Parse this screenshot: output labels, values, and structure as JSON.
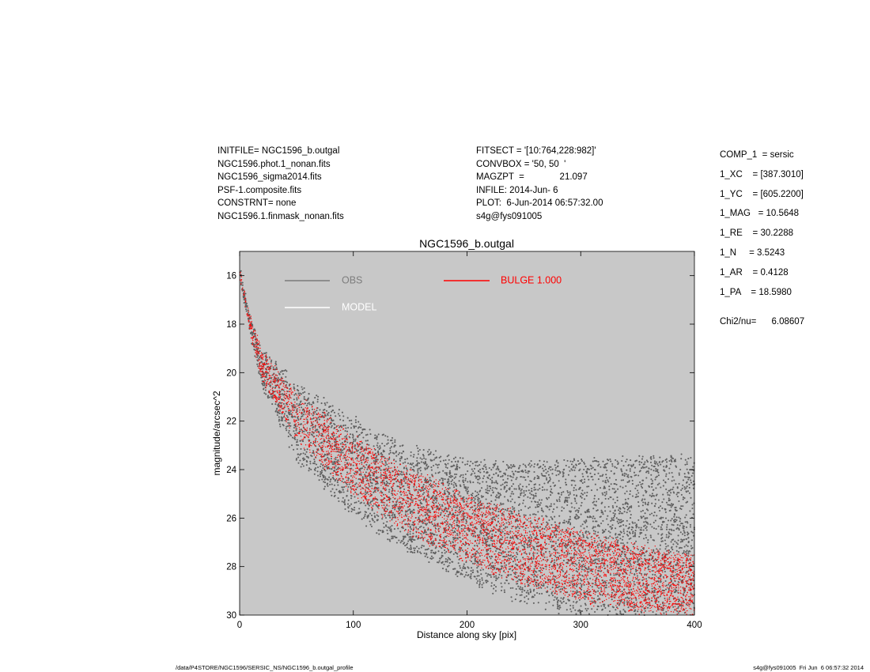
{
  "header_left": [
    "INITFILE= NGC1596_b.outgal",
    "NGC1596.phot.1_nonan.fits",
    "NGC1596_sigma2014.fits",
    "PSF-1.composite.fits",
    "CONSTRNT= none",
    "NGC1596.1.finmask_nonan.fits"
  ],
  "header_mid": [
    "FITSECT = '[10:764,228:982]'",
    "CONVBOX = '50, 50  '",
    "MAGZPT  =              21.097",
    "INFILE: 2014-Jun- 6",
    "PLOT:  6-Jun-2014 06:57:32.00",
    "s4g@fys091005"
  ],
  "params": [
    "COMP_1  = sersic",
    "1_XC    = [387.3010]",
    "1_YC    = [605.2200]",
    "1_MAG   = 10.5648",
    "1_RE    = 30.2288",
    "1_N     = 3.5243",
    "1_AR    = 0.4128",
    "1_PA    = 18.5980"
  ],
  "chi2": "Chi2/nu=      6.08607",
  "footer_left": "/data/P4STORE/NGC1596/SERSIC_NS/NGC1596_b.outgal_profile",
  "footer_right": "s4g@fys091005  Fri Jun  6 06:57:32 2014",
  "chart_data": {
    "type": "scatter",
    "title": "NGC1596_b.outgal",
    "xlabel": "Distance along sky [pix]",
    "ylabel": "magnitude/arcsec^2",
    "xlim": [
      0,
      400
    ],
    "ylim": [
      30,
      15
    ],
    "y_inverted": true,
    "x_ticks": [
      0,
      100,
      200,
      300,
      400
    ],
    "y_ticks": [
      16,
      18,
      20,
      22,
      24,
      26,
      28,
      30
    ],
    "grid": false,
    "background": "#c8c8c8",
    "legend": [
      {
        "name": "OBS",
        "color": "#6e6e6e"
      },
      {
        "name": "MODEL",
        "color": "#ffffff"
      },
      {
        "name": "BULGE  1.000",
        "color": "#ff0000"
      }
    ],
    "series": [
      {
        "name": "OBS",
        "color": "#606060",
        "upper_envelope": {
          "x": [
            0,
            10,
            20,
            50,
            100,
            150,
            200,
            250,
            300,
            350,
            400
          ],
          "y": [
            15.7,
            17.9,
            19.1,
            20.4,
            21.9,
            23.1,
            23.6,
            23.8,
            23.6,
            23.5,
            23.4
          ]
        },
        "lower_envelope": {
          "x": [
            0,
            10,
            20,
            50,
            100,
            150,
            200,
            250,
            300,
            350,
            400
          ],
          "y": [
            16.0,
            18.6,
            20.6,
            23.6,
            25.9,
            27.4,
            28.6,
            29.5,
            30.0,
            30.0,
            30.0
          ]
        }
      },
      {
        "name": "BULGE  1.000",
        "color": "#ff0000",
        "upper_envelope": {
          "x": [
            0,
            10,
            20,
            50,
            100,
            150,
            200,
            250,
            300,
            350,
            400
          ],
          "y": [
            15.8,
            17.8,
            19.2,
            20.9,
            22.7,
            24.0,
            25.1,
            25.9,
            26.6,
            27.2,
            27.6
          ]
        },
        "lower_envelope": {
          "x": [
            0,
            10,
            20,
            50,
            100,
            150,
            200,
            250,
            300,
            350,
            400
          ],
          "y": [
            16.1,
            18.5,
            20.3,
            22.7,
            25.0,
            26.6,
            27.8,
            28.7,
            29.4,
            29.8,
            30.0
          ]
        }
      }
    ]
  }
}
